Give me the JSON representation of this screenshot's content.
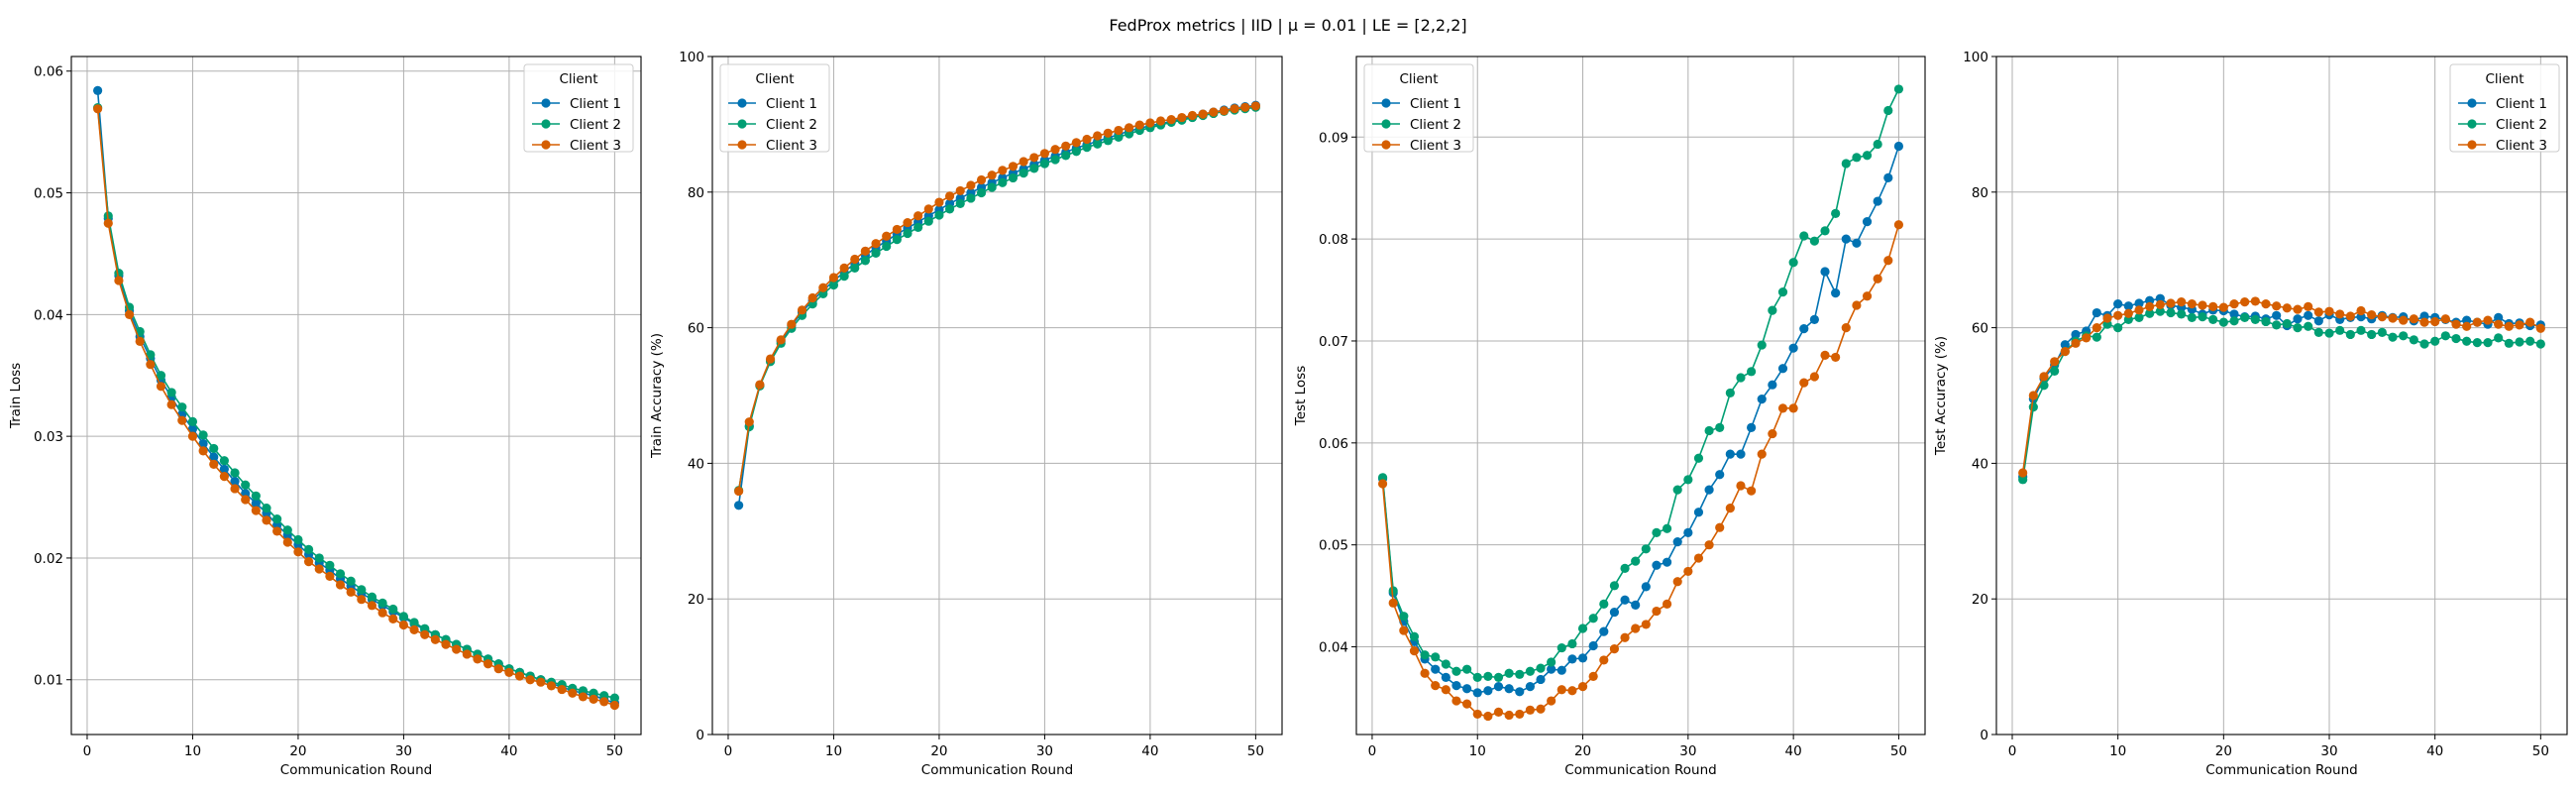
{
  "figure": {
    "title": "FedProx metrics | IID | μ = 0.01 | LE = [2,2,2]"
  },
  "chart_data": [
    {
      "type": "line",
      "xlabel": "Communication Round",
      "ylabel": "Train Loss",
      "xlim": [
        -1.5,
        52.5
      ],
      "ylim": [
        0.0055,
        0.0612
      ],
      "xticks": [
        0,
        10,
        20,
        30,
        40,
        50
      ],
      "yticks": [
        0.01,
        0.02,
        0.03,
        0.04,
        0.05,
        0.06
      ],
      "ytick_labels": [
        "0.01",
        "0.02",
        "0.03",
        "0.04",
        "0.05",
        "0.06"
      ],
      "grid": true,
      "legend": {
        "title": "Client",
        "placement": "top-right"
      },
      "x": [
        1,
        2,
        3,
        4,
        5,
        6,
        7,
        8,
        9,
        10,
        11,
        12,
        13,
        14,
        15,
        16,
        17,
        18,
        19,
        20,
        21,
        22,
        23,
        24,
        25,
        26,
        27,
        28,
        29,
        30,
        31,
        32,
        33,
        34,
        35,
        36,
        37,
        38,
        39,
        40,
        41,
        42,
        43,
        44,
        45,
        46,
        47,
        48,
        49,
        50
      ],
      "series": [
        {
          "name": "Client 1",
          "color": "#0072B2",
          "values": [
            0.0584,
            0.0479,
            0.0432,
            0.0403,
            0.0382,
            0.0364,
            0.0346,
            0.0332,
            0.0318,
            0.0306,
            0.0294,
            0.0283,
            0.0273,
            0.0263,
            0.0253,
            0.0245,
            0.0237,
            0.0227,
            0.0219,
            0.0211,
            0.0203,
            0.0196,
            0.019,
            0.0183,
            0.0177,
            0.0171,
            0.0166,
            0.0161,
            0.0156,
            0.0151,
            0.0146,
            0.0141,
            0.0137,
            0.0133,
            0.0129,
            0.0125,
            0.0121,
            0.0117,
            0.0113,
            0.0109,
            0.0106,
            0.0103,
            0.01,
            0.0097,
            0.0094,
            0.0091,
            0.0089,
            0.0087,
            0.0084,
            0.0081
          ]
        },
        {
          "name": "Client 2",
          "color": "#009E73",
          "values": [
            0.057,
            0.0481,
            0.0434,
            0.0406,
            0.0386,
            0.0367,
            0.035,
            0.0336,
            0.0324,
            0.0312,
            0.0301,
            0.029,
            0.028,
            0.027,
            0.026,
            0.0251,
            0.0241,
            0.0232,
            0.0223,
            0.0215,
            0.0207,
            0.02,
            0.0194,
            0.0187,
            0.0181,
            0.0174,
            0.0168,
            0.0163,
            0.0158,
            0.0152,
            0.0147,
            0.0142,
            0.0137,
            0.0133,
            0.0129,
            0.0125,
            0.0121,
            0.0117,
            0.0113,
            0.0109,
            0.0106,
            0.0103,
            0.01,
            0.0098,
            0.0096,
            0.0093,
            0.0091,
            0.0089,
            0.0087,
            0.0085
          ]
        },
        {
          "name": "Client 3",
          "color": "#D55E00",
          "values": [
            0.0569,
            0.0475,
            0.0428,
            0.04,
            0.0378,
            0.0359,
            0.0341,
            0.0326,
            0.0313,
            0.03,
            0.0288,
            0.0277,
            0.0267,
            0.0257,
            0.0248,
            0.0239,
            0.0231,
            0.0222,
            0.0213,
            0.0205,
            0.0197,
            0.0191,
            0.0185,
            0.0178,
            0.0172,
            0.0166,
            0.0161,
            0.0155,
            0.015,
            0.0145,
            0.0141,
            0.0137,
            0.0133,
            0.0129,
            0.0125,
            0.0121,
            0.0117,
            0.0113,
            0.0109,
            0.0106,
            0.0103,
            0.01,
            0.0098,
            0.0095,
            0.0092,
            0.0089,
            0.0086,
            0.0084,
            0.0082,
            0.0079
          ]
        }
      ]
    },
    {
      "type": "line",
      "xlabel": "Communication Round",
      "ylabel": "Train Accuracy (%)",
      "xlim": [
        -1.5,
        52.5
      ],
      "ylim": [
        0,
        100
      ],
      "xticks": [
        0,
        10,
        20,
        30,
        40,
        50
      ],
      "yticks": [
        0,
        20,
        40,
        60,
        80,
        100
      ],
      "ytick_labels": [
        "0",
        "20",
        "40",
        "60",
        "80",
        "100"
      ],
      "grid": true,
      "legend": {
        "title": "Client",
        "placement": "top-left"
      },
      "x": [
        1,
        2,
        3,
        4,
        5,
        6,
        7,
        8,
        9,
        10,
        11,
        12,
        13,
        14,
        15,
        16,
        17,
        18,
        19,
        20,
        21,
        22,
        23,
        24,
        25,
        26,
        27,
        28,
        29,
        30,
        31,
        32,
        33,
        34,
        35,
        36,
        37,
        38,
        39,
        40,
        41,
        42,
        43,
        44,
        45,
        46,
        47,
        48,
        49,
        50
      ],
      "series": [
        {
          "name": "Client 1",
          "color": "#0072B2",
          "values": [
            33.8,
            45.5,
            51.5,
            55.2,
            58.0,
            60.3,
            62.3,
            64.0,
            65.5,
            66.9,
            68.2,
            69.5,
            70.7,
            71.8,
            72.8,
            73.8,
            74.7,
            75.6,
            76.5,
            77.4,
            78.3,
            79.1,
            79.9,
            80.7,
            81.4,
            82.1,
            82.8,
            83.4,
            84.1,
            84.7,
            85.3,
            85.9,
            86.5,
            87.0,
            87.5,
            88.0,
            88.5,
            89.0,
            89.4,
            89.8,
            90.1,
            90.4,
            90.8,
            91.2,
            91.5,
            91.8,
            92.1,
            92.4,
            92.6,
            92.8
          ]
        },
        {
          "name": "Client 2",
          "color": "#009E73",
          "values": [
            36.0,
            45.4,
            51.4,
            55.0,
            57.7,
            59.9,
            61.8,
            63.5,
            65.0,
            66.3,
            67.6,
            68.8,
            69.9,
            71.0,
            72.0,
            73.0,
            73.9,
            74.8,
            75.7,
            76.6,
            77.5,
            78.3,
            79.1,
            79.9,
            80.7,
            81.4,
            82.1,
            82.8,
            83.5,
            84.2,
            84.8,
            85.4,
            86.0,
            86.6,
            87.1,
            87.6,
            88.1,
            88.6,
            89.1,
            89.5,
            89.9,
            90.3,
            90.6,
            91.0,
            91.3,
            91.6,
            91.9,
            92.1,
            92.3,
            92.5
          ]
        },
        {
          "name": "Client 3",
          "color": "#D55E00",
          "values": [
            35.9,
            46.1,
            51.6,
            55.4,
            58.2,
            60.5,
            62.6,
            64.4,
            65.9,
            67.4,
            68.8,
            70.1,
            71.3,
            72.4,
            73.5,
            74.5,
            75.5,
            76.5,
            77.5,
            78.5,
            79.4,
            80.2,
            81.0,
            81.8,
            82.5,
            83.2,
            83.8,
            84.5,
            85.1,
            85.7,
            86.3,
            86.8,
            87.3,
            87.8,
            88.3,
            88.7,
            89.1,
            89.5,
            89.9,
            90.2,
            90.5,
            90.7,
            91.0,
            91.3,
            91.5,
            91.8,
            92.0,
            92.3,
            92.5,
            92.7
          ]
        }
      ]
    },
    {
      "type": "line",
      "xlabel": "Communication Round",
      "ylabel": "Test Loss",
      "xlim": [
        -1.5,
        52.5
      ],
      "ylim": [
        0.0314,
        0.0979
      ],
      "xticks": [
        0,
        10,
        20,
        30,
        40,
        50
      ],
      "yticks": [
        0.04,
        0.05,
        0.06,
        0.07,
        0.08,
        0.09
      ],
      "ytick_labels": [
        "0.04",
        "0.05",
        "0.06",
        "0.07",
        "0.08",
        "0.09"
      ],
      "grid": true,
      "legend": {
        "title": "Client",
        "placement": "top-left"
      },
      "x": [
        1,
        2,
        3,
        4,
        5,
        6,
        7,
        8,
        9,
        10,
        11,
        12,
        13,
        14,
        15,
        16,
        17,
        18,
        19,
        20,
        21,
        22,
        23,
        24,
        25,
        26,
        27,
        28,
        29,
        30,
        31,
        32,
        33,
        34,
        35,
        36,
        37,
        38,
        39,
        40,
        41,
        42,
        43,
        44,
        45,
        46,
        47,
        48,
        49,
        50
      ],
      "series": [
        {
          "name": "Client 1",
          "color": "#0072B2",
          "values": [
            0.0565,
            0.0453,
            0.0425,
            0.0405,
            0.0388,
            0.0378,
            0.037,
            0.0362,
            0.0359,
            0.0355,
            0.0357,
            0.0361,
            0.0359,
            0.0356,
            0.0361,
            0.0368,
            0.0378,
            0.0377,
            0.0388,
            0.0389,
            0.0401,
            0.0415,
            0.0434,
            0.0446,
            0.0441,
            0.0459,
            0.048,
            0.0483,
            0.0503,
            0.0512,
            0.0532,
            0.0554,
            0.0569,
            0.0589,
            0.0589,
            0.0615,
            0.0643,
            0.0657,
            0.0673,
            0.0693,
            0.0712,
            0.0721,
            0.0768,
            0.0747,
            0.08,
            0.0796,
            0.0817,
            0.0837,
            0.086,
            0.0891
          ]
        },
        {
          "name": "Client 2",
          "color": "#009E73",
          "values": [
            0.0566,
            0.0455,
            0.043,
            0.041,
            0.0392,
            0.039,
            0.0383,
            0.0376,
            0.0378,
            0.037,
            0.0371,
            0.037,
            0.0374,
            0.0373,
            0.0376,
            0.0379,
            0.0385,
            0.0399,
            0.0403,
            0.0418,
            0.0428,
            0.0442,
            0.046,
            0.0477,
            0.0484,
            0.0496,
            0.0512,
            0.0516,
            0.0554,
            0.0564,
            0.0585,
            0.0612,
            0.0615,
            0.0649,
            0.0664,
            0.067,
            0.0696,
            0.073,
            0.0748,
            0.0777,
            0.0803,
            0.0798,
            0.0808,
            0.0825,
            0.0874,
            0.088,
            0.0882,
            0.0893,
            0.0926,
            0.0947
          ]
        },
        {
          "name": "Client 3",
          "color": "#D55E00",
          "values": [
            0.056,
            0.0443,
            0.0416,
            0.0396,
            0.0374,
            0.0362,
            0.0358,
            0.0347,
            0.0344,
            0.0334,
            0.0332,
            0.0336,
            0.0333,
            0.0334,
            0.0338,
            0.0339,
            0.0347,
            0.0358,
            0.0357,
            0.0361,
            0.0371,
            0.0387,
            0.0398,
            0.0409,
            0.0418,
            0.0422,
            0.0435,
            0.0442,
            0.0464,
            0.0474,
            0.0487,
            0.05,
            0.0517,
            0.0536,
            0.0558,
            0.0553,
            0.0589,
            0.0609,
            0.0634,
            0.0634,
            0.0659,
            0.0665,
            0.0686,
            0.0684,
            0.0713,
            0.0735,
            0.0744,
            0.0761,
            0.0779,
            0.0814
          ]
        }
      ]
    },
    {
      "type": "line",
      "xlabel": "Communication Round",
      "ylabel": "Test Accuracy (%)",
      "xlim": [
        -1.5,
        52.5
      ],
      "ylim": [
        0,
        100
      ],
      "xticks": [
        0,
        10,
        20,
        30,
        40,
        50
      ],
      "yticks": [
        0,
        20,
        40,
        60,
        80,
        100
      ],
      "ytick_labels": [
        "0",
        "20",
        "40",
        "60",
        "80",
        "100"
      ],
      "grid": true,
      "legend": {
        "title": "Client",
        "placement": "top-right"
      },
      "x": [
        1,
        2,
        3,
        4,
        5,
        6,
        7,
        8,
        9,
        10,
        11,
        12,
        13,
        14,
        15,
        16,
        17,
        18,
        19,
        20,
        21,
        22,
        23,
        24,
        25,
        26,
        27,
        28,
        29,
        30,
        31,
        32,
        33,
        34,
        35,
        36,
        37,
        38,
        39,
        40,
        41,
        42,
        43,
        44,
        45,
        46,
        47,
        48,
        49,
        50
      ],
      "series": [
        {
          "name": "Client 1",
          "color": "#0072B2",
          "values": [
            38.0,
            49.5,
            52.5,
            54.5,
            57.5,
            59.0,
            59.5,
            62.2,
            61.8,
            63.5,
            63.2,
            63.6,
            64.0,
            64.3,
            63.3,
            63.0,
            62.7,
            62.0,
            62.6,
            62.5,
            62.0,
            61.6,
            61.7,
            61.3,
            61.8,
            60.3,
            61.3,
            61.8,
            61.0,
            61.9,
            61.2,
            61.5,
            61.6,
            61.3,
            61.8,
            61.5,
            61.6,
            61.0,
            61.7,
            61.5,
            61.2,
            60.8,
            61.1,
            60.8,
            60.5,
            61.5,
            60.6,
            60.7,
            60.3,
            60.4
          ]
        },
        {
          "name": "Client 2",
          "color": "#009E73",
          "values": [
            37.6,
            48.3,
            51.5,
            53.6,
            56.5,
            58.0,
            58.8,
            58.6,
            60.5,
            60.0,
            61.2,
            61.5,
            62.1,
            62.4,
            62.2,
            62.0,
            61.5,
            61.6,
            61.2,
            60.8,
            61.0,
            61.5,
            61.2,
            60.9,
            60.4,
            60.6,
            60.0,
            60.2,
            59.3,
            59.2,
            59.6,
            59.0,
            59.6,
            59.0,
            59.3,
            58.6,
            58.8,
            58.2,
            57.6,
            58.0,
            58.8,
            58.4,
            58.0,
            57.8,
            57.8,
            58.5,
            57.7,
            57.9,
            58.0,
            57.6
          ]
        },
        {
          "name": "Client 3",
          "color": "#D55E00",
          "values": [
            38.6,
            50.0,
            52.8,
            55.0,
            56.5,
            57.7,
            58.5,
            60.0,
            61.4,
            61.8,
            62.1,
            62.6,
            63.1,
            63.4,
            63.6,
            63.8,
            63.5,
            63.3,
            63.1,
            63.0,
            63.5,
            63.8,
            63.9,
            63.5,
            63.2,
            62.9,
            62.7,
            63.1,
            62.3,
            62.4,
            62.0,
            61.7,
            62.5,
            61.9,
            61.6,
            61.4,
            61.1,
            61.3,
            60.8,
            60.9,
            61.3,
            60.5,
            60.2,
            60.8,
            61.1,
            60.5,
            60.2,
            60.4,
            60.8,
            59.9
          ]
        }
      ]
    }
  ]
}
